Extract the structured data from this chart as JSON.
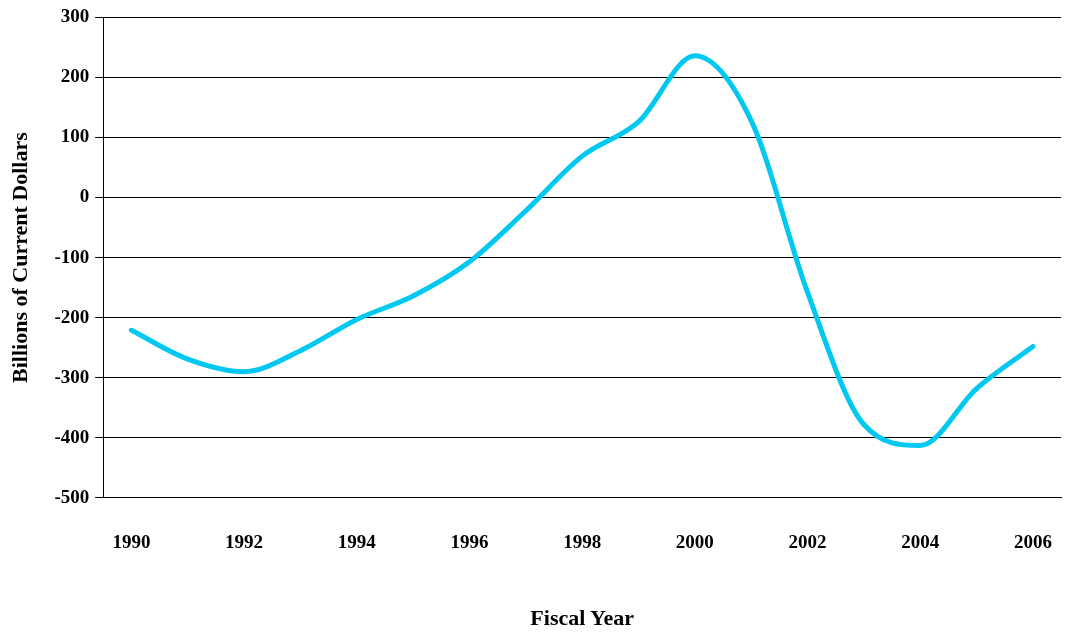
{
  "chart_data": {
    "type": "line",
    "xlabel": "Fiscal Year",
    "ylabel": "Billions of Current Dollars",
    "categories": [
      "1990",
      null,
      "1992",
      null,
      "1994",
      null,
      "1996",
      null,
      "1998",
      null,
      "2000",
      null,
      "2002",
      null,
      "2004",
      null,
      "2006"
    ],
    "series": [
      {
        "color": "#00c8f0",
        "values": [
          -221,
          -269,
          -290,
          -255,
          -203,
          -164,
          -107,
          -22,
          69,
          126,
          236,
          128,
          -158,
          -378,
          -413,
          -318,
          -248
        ]
      }
    ],
    "ylim": [
      -500,
      300
    ],
    "yticks": [
      -500,
      -400,
      -300,
      -200,
      -100,
      0,
      100,
      200,
      300
    ],
    "grid": "y",
    "legend": false,
    "marker": "none",
    "line_style": "solid"
  }
}
